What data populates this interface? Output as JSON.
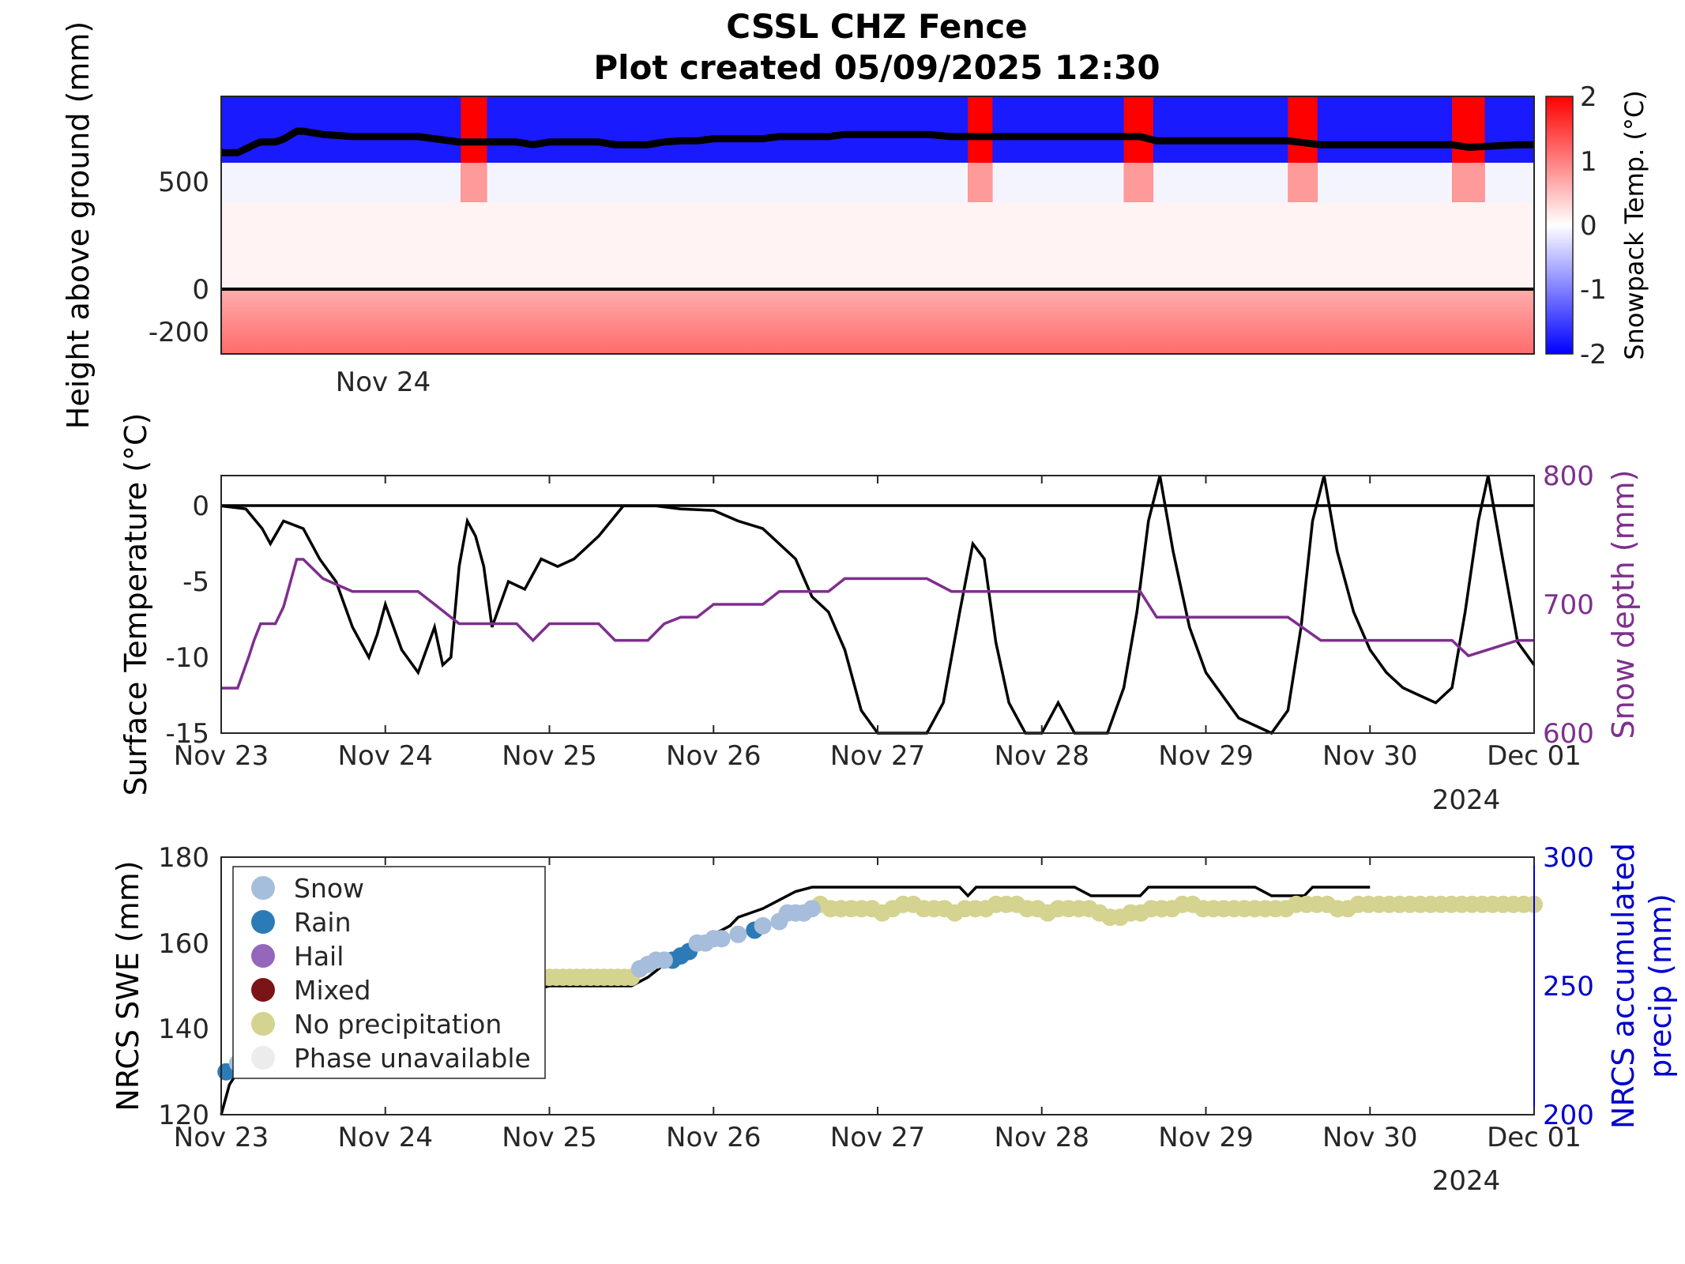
{
  "chart_data": [
    {
      "type": "heatmap",
      "panel": "snowpack-temperature",
      "title": "CSSL CHZ Fence",
      "subtitle": "Plot created 05/09/2025 12:30",
      "ylabel": "Height above ground (mm)",
      "y_ticks": [
        "500",
        "0",
        "-200"
      ],
      "x_tick_label": "Nov 24",
      "colorbar": {
        "label": "Snowpack Temp. (°C)",
        "range": [
          -2,
          2
        ],
        "ticks": [
          "2",
          "1",
          "0",
          "-1",
          "-2"
        ],
        "low_color": "#0000ff",
        "mid_color": "#ffffff",
        "high_color": "#ff0000"
      },
      "ground_line_mm": 0,
      "warm_bands_days": [
        [
          1.46,
          1.62
        ],
        [
          4.55,
          4.7
        ],
        [
          5.5,
          5.68
        ],
        [
          6.5,
          6.68
        ],
        [
          7.5,
          7.7
        ]
      ],
      "snow_depth_overlay": {
        "x": [
          0,
          0.1,
          0.17,
          0.2,
          0.24,
          0.33,
          0.38,
          0.46,
          0.5,
          0.62,
          0.8,
          1.0,
          1.2,
          1.3,
          1.45,
          1.55,
          1.6,
          1.8,
          1.9,
          2.0,
          2.3,
          2.4,
          2.6,
          2.7,
          2.8,
          2.9,
          3.0,
          3.1,
          3.3,
          3.4,
          3.6,
          3.7,
          3.8,
          4.0,
          4.3,
          4.45,
          4.5,
          5.0,
          5.5,
          5.6,
          5.7,
          6.0,
          6.4,
          6.5,
          6.7,
          7.0,
          7.3,
          7.5,
          7.6,
          7.9,
          8.0
        ],
        "y": [
          635,
          635,
          660,
          672,
          685,
          685,
          698,
          735,
          735,
          720,
          710,
          710,
          710,
          700,
          685,
          685,
          685,
          685,
          672,
          685,
          685,
          672,
          672,
          685,
          690,
          690,
          700,
          700,
          700,
          710,
          710,
          710,
          720,
          720,
          720,
          710,
          710,
          710,
          710,
          710,
          690,
          690,
          690,
          690,
          672,
          672,
          672,
          672,
          660,
          672,
          672
        ]
      }
    },
    {
      "type": "line",
      "panel": "surface-temperature",
      "x_ticks": [
        "Nov 23",
        "Nov 24",
        "Nov 25",
        "Nov 26",
        "Nov 27",
        "Nov 28",
        "Nov 29",
        "Nov 30",
        "Dec 01"
      ],
      "year_label": "2024",
      "ylabel": "Surface Temperature (°C)",
      "ylim": [
        -15,
        2
      ],
      "y_ticks": [
        "0",
        "-5",
        "-10",
        "-15"
      ],
      "y2label": "Snow depth (mm)",
      "y2lim": [
        600,
        800
      ],
      "y2_ticks": [
        "800",
        "700",
        "600"
      ],
      "series": [
        {
          "axis": "left",
          "color": "#000000",
          "x": [
            0,
            0.15,
            0.25,
            0.3,
            0.38,
            0.5,
            0.6,
            0.7,
            0.8,
            0.9,
            0.95,
            1.0,
            1.1,
            1.2,
            1.3,
            1.35,
            1.4,
            1.45,
            1.5,
            1.55,
            1.6,
            1.65,
            1.75,
            1.85,
            1.95,
            2.05,
            2.15,
            2.3,
            2.45,
            2.55,
            2.65,
            2.8,
            3.0,
            3.15,
            3.3,
            3.5,
            3.6,
            3.7,
            3.8,
            3.9,
            4.0,
            4.15,
            4.3,
            4.4,
            4.5,
            4.58,
            4.65,
            4.72,
            4.8,
            4.9,
            5.0,
            5.1,
            5.2,
            5.4,
            5.5,
            5.58,
            5.65,
            5.72,
            5.8,
            5.9,
            6.0,
            6.2,
            6.4,
            6.5,
            6.58,
            6.65,
            6.72,
            6.8,
            6.9,
            7.0,
            7.1,
            7.2,
            7.3,
            7.4,
            7.5,
            7.58,
            7.66,
            7.72,
            7.8,
            7.9,
            8.0
          ],
          "y": [
            0,
            -0.2,
            -1.5,
            -2.5,
            -1.0,
            -1.5,
            -3.5,
            -5.0,
            -8.0,
            -10.0,
            -8.5,
            -6.5,
            -9.5,
            -11.0,
            -8.0,
            -10.5,
            -10.0,
            -4.0,
            -1.0,
            -2.0,
            -4.0,
            -8.0,
            -5.0,
            -5.5,
            -3.5,
            -4.0,
            -3.5,
            -2.0,
            0,
            0,
            0,
            -0.2,
            -0.3,
            -1.0,
            -1.5,
            -3.5,
            -6.0,
            -7.0,
            -9.5,
            -13.5,
            -15.0,
            -15.0,
            -15.0,
            -13.0,
            -7.0,
            -2.5,
            -3.5,
            -9.0,
            -13.0,
            -15.0,
            -15.0,
            -13.0,
            -15.0,
            -15.0,
            -12.0,
            -7.0,
            -1.0,
            2.0,
            -3.0,
            -8.0,
            -11.0,
            -14.0,
            -15.0,
            -13.5,
            -8.0,
            -1.0,
            2.0,
            -3.0,
            -7.0,
            -9.5,
            -11.0,
            -12.0,
            -12.5,
            -13.0,
            -12.0,
            -7.0,
            -1.0,
            2.0,
            -3.0,
            -9.0,
            -10.5
          ]
        },
        {
          "axis": "right",
          "color": "#7e2f8e",
          "x": [
            0,
            0.1,
            0.17,
            0.2,
            0.24,
            0.33,
            0.38,
            0.46,
            0.5,
            0.62,
            0.8,
            1.0,
            1.2,
            1.3,
            1.45,
            1.55,
            1.6,
            1.8,
            1.9,
            2.0,
            2.3,
            2.4,
            2.6,
            2.7,
            2.8,
            2.9,
            3.0,
            3.1,
            3.3,
            3.4,
            3.6,
            3.7,
            3.8,
            4.0,
            4.3,
            4.45,
            4.5,
            5.0,
            5.5,
            5.6,
            5.7,
            6.0,
            6.4,
            6.5,
            6.7,
            7.0,
            7.3,
            7.5,
            7.6,
            7.9,
            8.0
          ],
          "y": [
            635,
            635,
            660,
            672,
            685,
            685,
            698,
            735,
            735,
            720,
            710,
            710,
            710,
            700,
            685,
            685,
            685,
            685,
            672,
            685,
            685,
            672,
            672,
            685,
            690,
            690,
            700,
            700,
            700,
            710,
            710,
            710,
            720,
            720,
            720,
            710,
            710,
            710,
            710,
            710,
            690,
            690,
            690,
            690,
            672,
            672,
            672,
            672,
            660,
            672,
            672
          ]
        }
      ]
    },
    {
      "type": "scatter",
      "panel": "swe-precip",
      "x_ticks": [
        "Nov 23",
        "Nov 24",
        "Nov 25",
        "Nov 26",
        "Nov 27",
        "Nov 28",
        "Nov 29",
        "Nov 30",
        "Dec 01"
      ],
      "year_label": "2024",
      "ylabel": "NRCS SWE (mm)",
      "ylim": [
        120,
        180
      ],
      "y_ticks": [
        "180",
        "160",
        "140",
        "120"
      ],
      "y2label_lines": [
        "NRCS accumulated",
        "precip (mm)"
      ],
      "y2lim": [
        200,
        300
      ],
      "y2_ticks": [
        "300",
        "250",
        "200"
      ],
      "legend_position": "top-left",
      "legend": [
        {
          "label": "Snow",
          "color": "#a6bddb"
        },
        {
          "label": "Rain",
          "color": "#2c7bb6"
        },
        {
          "label": "Hail",
          "color": "#9467bd"
        },
        {
          "label": "Mixed",
          "color": "#7b1416"
        },
        {
          "label": "No precipitation",
          "color": "#d4d38f"
        },
        {
          "label": "Phase unavailable",
          "color": "#ececec"
        }
      ],
      "precip_line": {
        "color": "#000000",
        "x": [
          0,
          0.05,
          0.1,
          2.0,
          2.5,
          2.6,
          2.7,
          2.8,
          2.9,
          3.0,
          3.1,
          3.15,
          3.3,
          3.4,
          3.5,
          3.6,
          4.0,
          4.5,
          4.55,
          4.6,
          5.0,
          5.2,
          5.3,
          5.6,
          5.65,
          6.0,
          6.3,
          6.4,
          6.6,
          6.65,
          7.0
        ],
        "y": [
          120,
          127,
          130,
          150,
          150,
          152,
          155,
          157,
          160,
          162,
          164,
          166,
          168,
          170,
          172,
          173,
          173,
          173,
          171,
          173,
          173,
          173,
          171,
          171,
          173,
          173,
          173,
          171,
          171,
          173,
          173
        ]
      },
      "swe_points": [
        {
          "phase": "Rain",
          "x": [
            0.03,
            2.75,
            2.8,
            2.85,
            3.25
          ],
          "y": [
            130,
            156,
            157,
            158,
            163
          ]
        },
        {
          "phase": "Snow",
          "x": [
            0.1,
            2.55,
            2.6,
            2.65,
            2.7,
            2.9,
            2.95,
            3.0,
            3.05,
            3.15,
            3.3,
            3.4,
            3.45,
            3.5,
            3.55,
            3.6
          ],
          "y": [
            132,
            154,
            155,
            156,
            156,
            160,
            160,
            161,
            161,
            162,
            164,
            165,
            167,
            167,
            167,
            168
          ]
        }
      ],
      "no_precip_segments": [
        {
          "x_range": [
            2.0,
            2.5
          ],
          "y": 152
        },
        {
          "x_range": [
            3.65,
            8.0
          ],
          "y": [
            169,
            168,
            168,
            168,
            168,
            168,
            167,
            168,
            169,
            169,
            168,
            168,
            168,
            167,
            168,
            168,
            168,
            169,
            169,
            169,
            168,
            168,
            167,
            168,
            168,
            168,
            168,
            167,
            166,
            166,
            167,
            167,
            168,
            168,
            168,
            169,
            169,
            168,
            168,
            168,
            168,
            168,
            168,
            168,
            168,
            168,
            169,
            169,
            169,
            169,
            168,
            168,
            169,
            169,
            169,
            169,
            169,
            169,
            169,
            169,
            169,
            169,
            169,
            169,
            169,
            169,
            169,
            169,
            169,
            169
          ]
        }
      ]
    }
  ]
}
